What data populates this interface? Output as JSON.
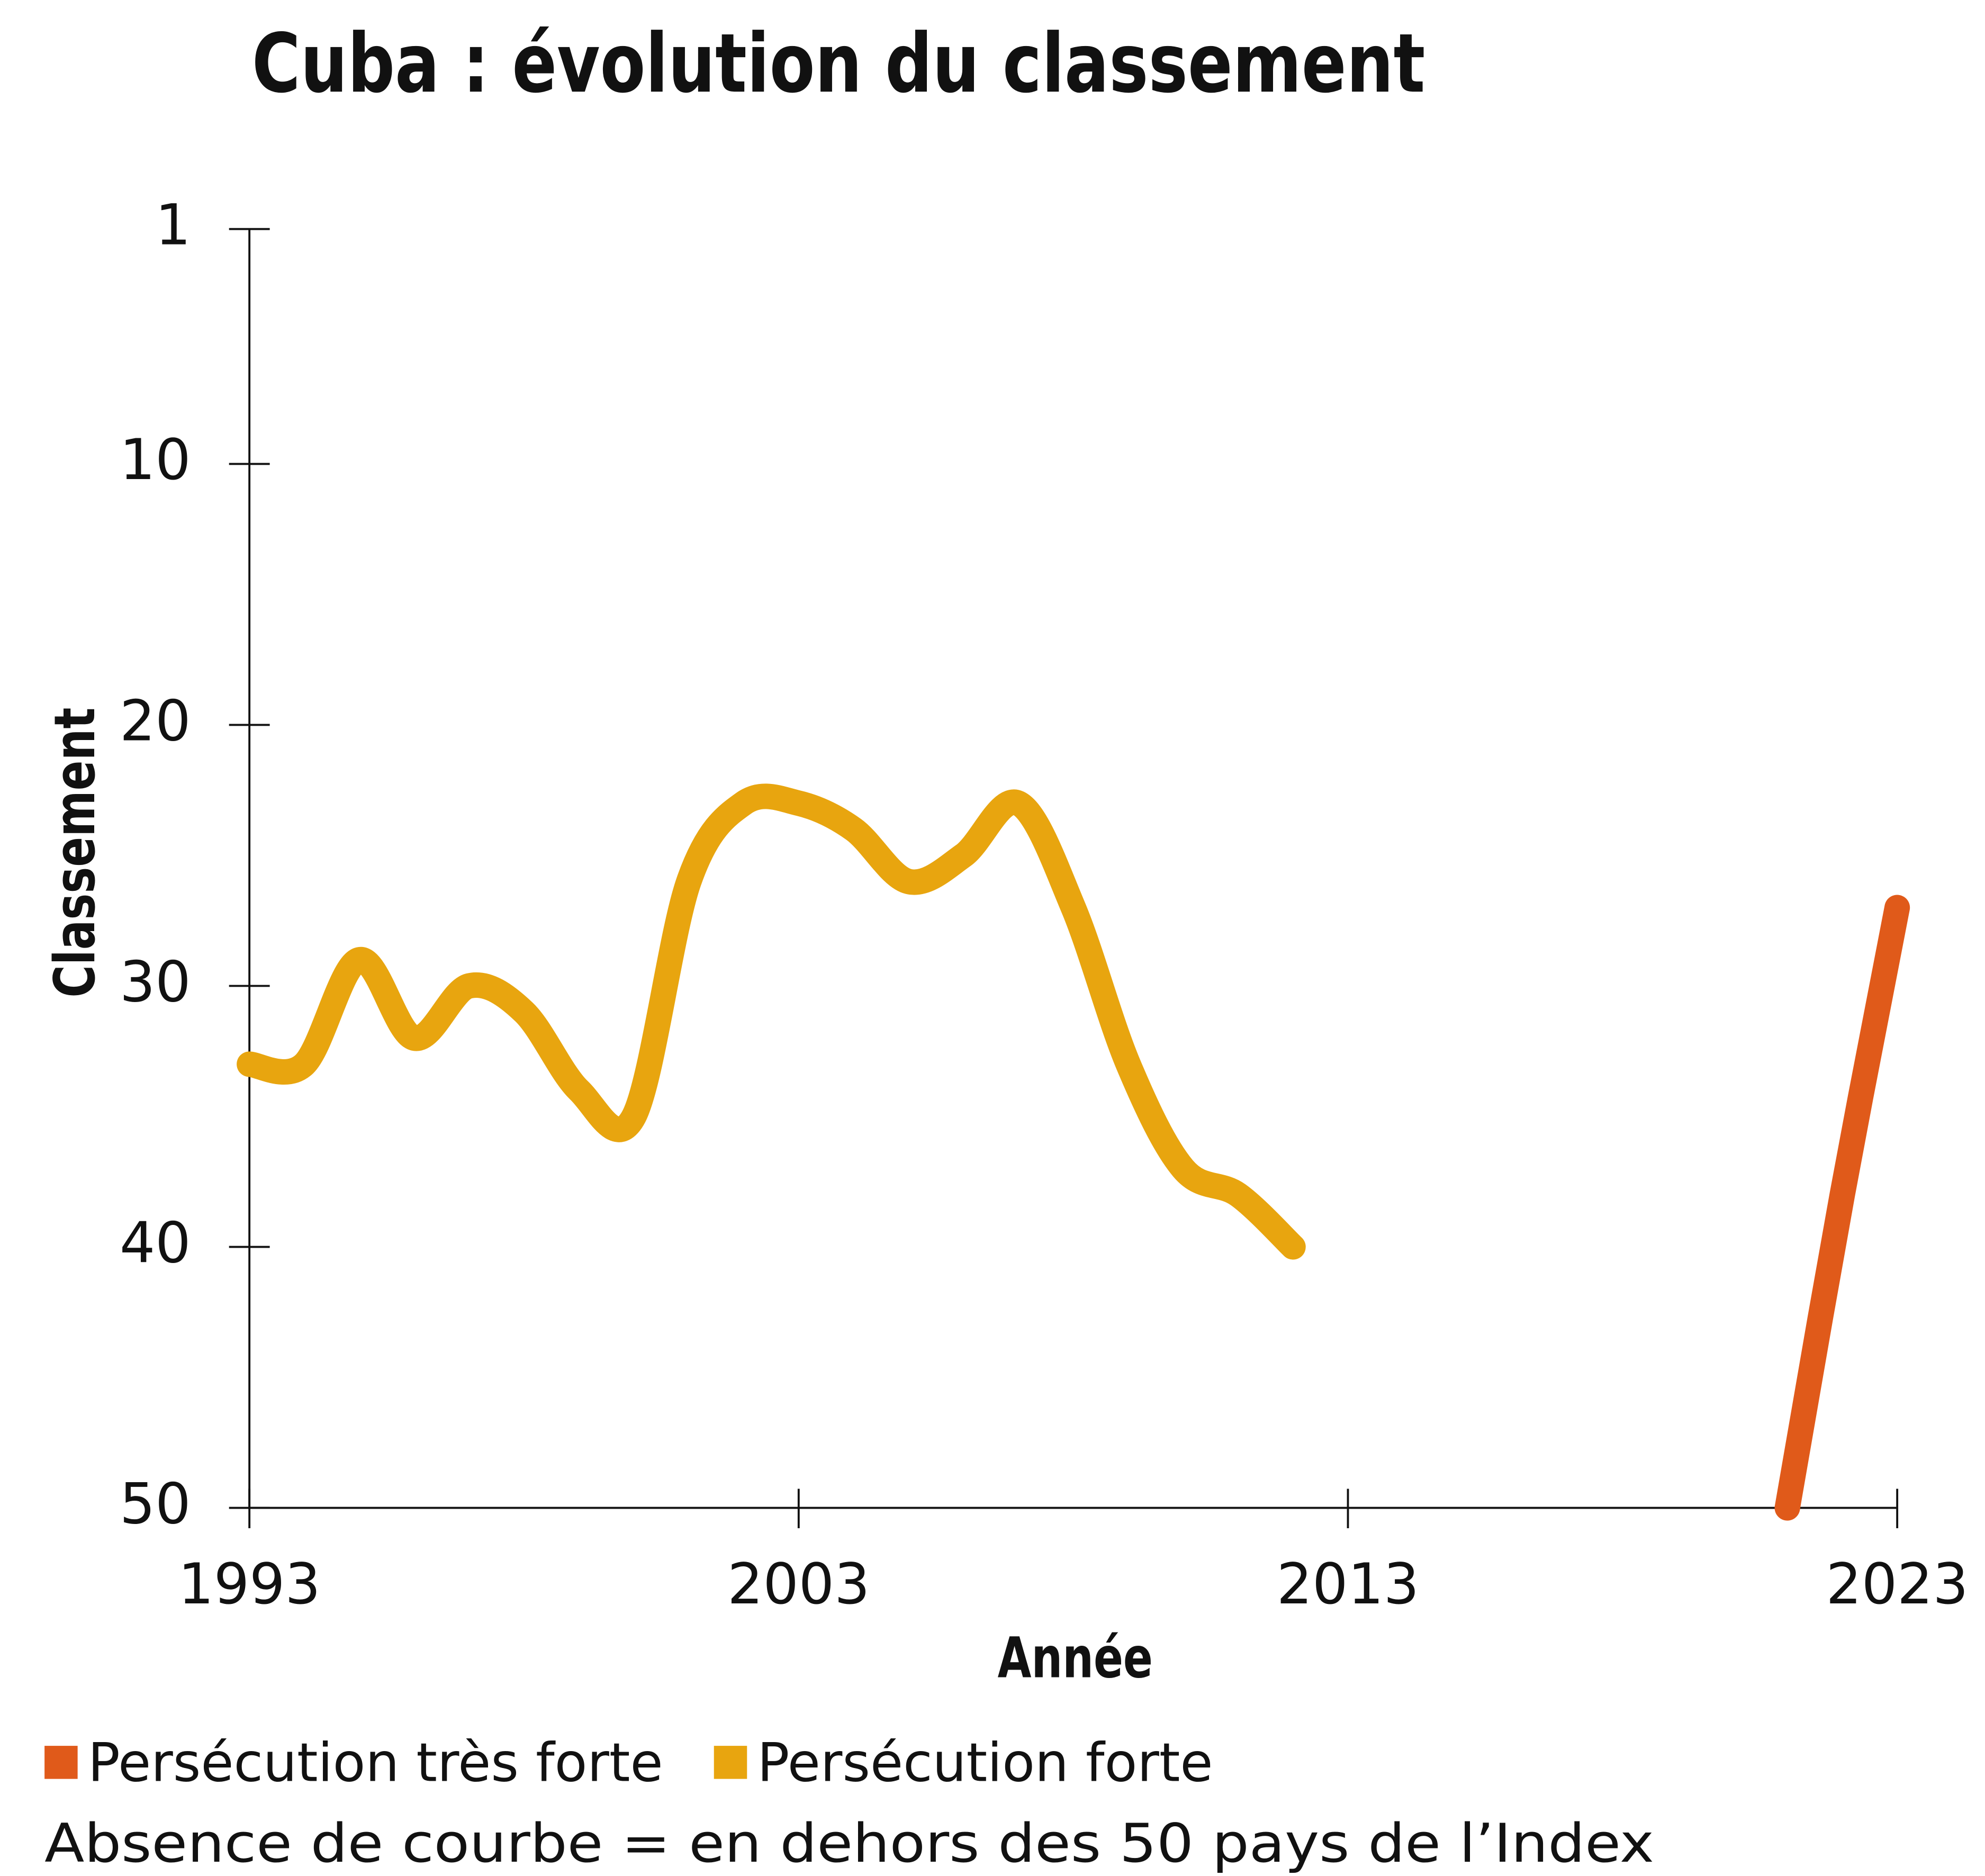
{
  "chart_data": {
    "type": "line",
    "title": "Cuba : évolution du classement",
    "x_label": "Année",
    "y_label": "Classement",
    "note": "Absence de courbe = en dehors des 50 pays de l’Index",
    "x": [
      1993,
      1994,
      1995,
      1996,
      1997,
      1998,
      1999,
      2000,
      2001,
      2002,
      2003,
      2004,
      2005,
      2006,
      2007,
      2008,
      2009,
      2010,
      2011,
      2012,
      2013,
      2014,
      2015,
      2016,
      2017,
      2018,
      2019,
      2020,
      2021,
      2022,
      2023
    ],
    "series": [
      {
        "name": "Persécution très forte",
        "color": "#e05a1a",
        "values": [
          null,
          null,
          null,
          null,
          null,
          null,
          null,
          null,
          null,
          null,
          null,
          null,
          null,
          null,
          null,
          null,
          null,
          null,
          null,
          null,
          null,
          null,
          null,
          null,
          null,
          null,
          null,
          null,
          50,
          38,
          27
        ]
      },
      {
        "name": "Persécution forte",
        "color": "#e8a50f",
        "values": [
          33,
          33,
          29,
          32,
          30,
          31,
          34,
          35,
          26,
          23,
          23,
          24,
          26,
          25,
          23,
          27,
          33,
          37,
          38,
          40,
          null,
          null,
          null,
          null,
          null,
          null,
          null,
          null,
          null,
          null,
          null
        ]
      }
    ],
    "xlim": [
      1993,
      2023
    ],
    "xticks": [
      1993,
      2003,
      2013,
      2023
    ],
    "ylim": [
      1,
      50
    ],
    "yticks": [
      1,
      10,
      20,
      30,
      40,
      50
    ],
    "y_inverted": true,
    "smooth": true,
    "grid": false
  }
}
